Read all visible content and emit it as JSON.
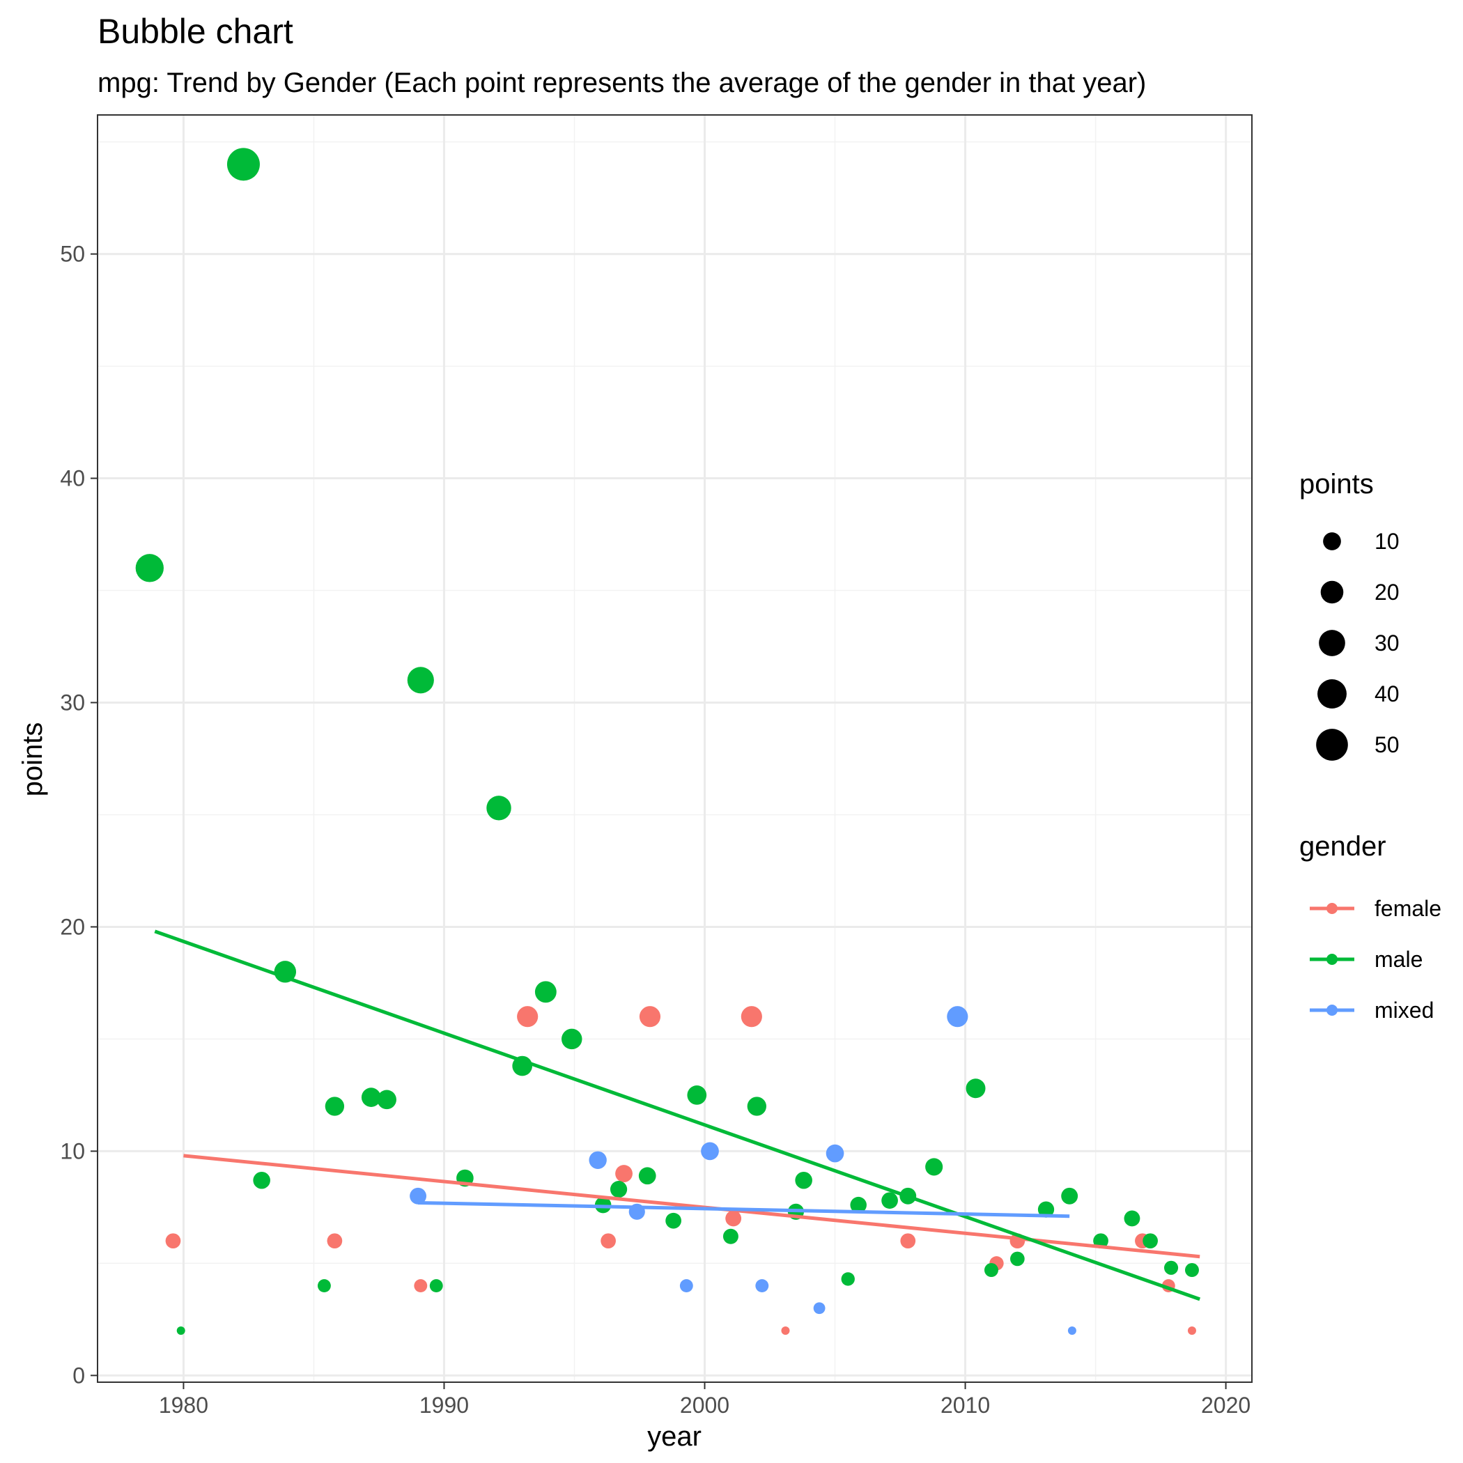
{
  "chart_data": {
    "type": "scatter",
    "title": "Bubble chart",
    "subtitle": "mpg: Trend by Gender (Each point represents the average of the gender in that year)",
    "xlabel": "year",
    "ylabel": "points",
    "xlim": [
      1976.7,
      2021.0
    ],
    "ylim": [
      -0.3,
      56.2
    ],
    "x_ticks": [
      1980,
      1990,
      2000,
      2010,
      2020
    ],
    "y_ticks": [
      0,
      10,
      20,
      30,
      40,
      50
    ],
    "grid": true,
    "size_scale": {
      "min": 2,
      "max": 54
    },
    "legend_position": "right",
    "size_legend": {
      "title": "points",
      "values": [
        10,
        20,
        30,
        40,
        50
      ],
      "labels": [
        "10",
        "20",
        "30",
        "40",
        "50"
      ]
    },
    "color_legend": {
      "title": "gender",
      "entries": [
        "female",
        "male",
        "mixed"
      ]
    },
    "colors": {
      "female": "#F8766D",
      "male": "#00BA38",
      "mixed": "#619CFF"
    },
    "series": [
      {
        "name": "female",
        "color": "#F8766D",
        "points": [
          [
            1979.6,
            6
          ],
          [
            1985.8,
            6
          ],
          [
            1989.1,
            4
          ],
          [
            1993.2,
            16
          ],
          [
            1996.3,
            6
          ],
          [
            1996.9,
            9
          ],
          [
            1997.9,
            16
          ],
          [
            2001.1,
            7
          ],
          [
            2001.8,
            16
          ],
          [
            2003.1,
            2
          ],
          [
            2007.8,
            6
          ],
          [
            2011.2,
            5
          ],
          [
            2012.0,
            6
          ],
          [
            2016.8,
            6
          ],
          [
            2017.8,
            4
          ],
          [
            2018.7,
            2
          ]
        ],
        "trend": [
          [
            1980.0,
            9.8
          ],
          [
            2019.0,
            5.3
          ]
        ]
      },
      {
        "name": "male",
        "color": "#00BA38",
        "points": [
          [
            1978.7,
            36
          ],
          [
            1979.9,
            2
          ],
          [
            1982.3,
            54
          ],
          [
            1983.0,
            8.7
          ],
          [
            1983.9,
            18
          ],
          [
            1985.4,
            4
          ],
          [
            1985.8,
            12
          ],
          [
            1987.2,
            12.4
          ],
          [
            1987.8,
            12.3
          ],
          [
            1989.1,
            31
          ],
          [
            1989.7,
            4
          ],
          [
            1990.8,
            8.8
          ],
          [
            1992.1,
            25.3
          ],
          [
            1993.0,
            13.8
          ],
          [
            1993.9,
            17.1
          ],
          [
            1994.9,
            15
          ],
          [
            1996.1,
            7.6
          ],
          [
            1996.7,
            8.3
          ],
          [
            1997.8,
            8.9
          ],
          [
            1998.8,
            6.9
          ],
          [
            1999.7,
            12.5
          ],
          [
            2001.0,
            6.2
          ],
          [
            2002.0,
            12
          ],
          [
            2003.5,
            7.3
          ],
          [
            2003.8,
            8.7
          ],
          [
            2005.5,
            4.3
          ],
          [
            2005.9,
            7.6
          ],
          [
            2007.1,
            7.8
          ],
          [
            2007.8,
            8
          ],
          [
            2008.8,
            9.3
          ],
          [
            2010.4,
            12.8
          ],
          [
            2011.0,
            4.7
          ],
          [
            2012.0,
            5.2
          ],
          [
            2013.1,
            7.4
          ],
          [
            2014.0,
            8
          ],
          [
            2015.2,
            6
          ],
          [
            2016.4,
            7
          ],
          [
            2017.1,
            6
          ],
          [
            2017.9,
            4.8
          ],
          [
            2018.7,
            4.7
          ]
        ],
        "trend": [
          [
            1978.9,
            19.8
          ],
          [
            2019.0,
            3.4
          ]
        ]
      },
      {
        "name": "mixed",
        "color": "#619CFF",
        "points": [
          [
            1989.0,
            8
          ],
          [
            1995.9,
            9.6
          ],
          [
            1997.4,
            7.3
          ],
          [
            1999.3,
            4
          ],
          [
            2000.2,
            10
          ],
          [
            2002.2,
            4
          ],
          [
            2004.4,
            3
          ],
          [
            2005.0,
            9.9
          ],
          [
            2009.7,
            16
          ],
          [
            2014.1,
            2
          ]
        ],
        "trend": [
          [
            1989.0,
            7.7
          ],
          [
            2014.0,
            7.1
          ]
        ]
      }
    ]
  }
}
